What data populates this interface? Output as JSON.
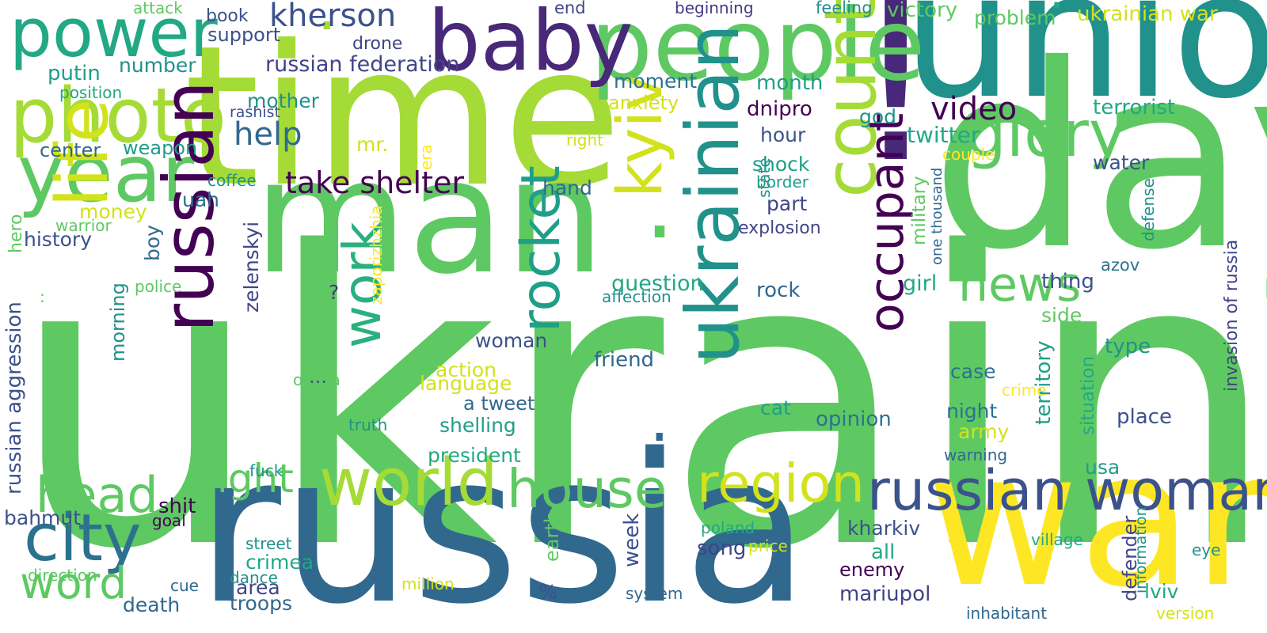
{
  "palette": {
    "lime": "#7ad151",
    "green": "#5ec962",
    "yellowgreen": "#a5db36",
    "yellow": "#fde725",
    "chartreuse": "#d2e21b",
    "teal": "#21918c",
    "sea": "#22a884",
    "aqua": "#2ab07f",
    "blue": "#31688e",
    "slate": "#3b528b",
    "indigo": "#443983",
    "purple": "#482878",
    "plum": "#440154",
    "cyan": "#1f9e89",
    "steel": "#2c728e",
    "navy": "#414487"
  },
  "words": [
    {
      "text": "ukraine",
      "color": "green"
    },
    {
      "text": "russia",
      "color": "blue"
    },
    {
      "text": "war",
      "color": "yellow"
    },
    {
      "text": "time",
      "color": "yellowgreen"
    },
    {
      "text": "man",
      "color": "green"
    },
    {
      "text": "day",
      "color": "green"
    },
    {
      "text": "union",
      "color": "teal"
    },
    {
      "text": "!",
      "color": "purple"
    },
    {
      "text": ".",
      "color": "green"
    },
    {
      "text": ".",
      "color": "blue"
    },
    {
      "text": ".",
      "color": "yellowgreen"
    },
    {
      "text": ".",
      "color": "sea"
    },
    {
      "text": "people",
      "color": "green"
    },
    {
      "text": "baby",
      "color": "purple"
    },
    {
      "text": "power",
      "color": "sea"
    },
    {
      "text": "photo",
      "color": "yellowgreen"
    },
    {
      "text": "year",
      "color": "green"
    },
    {
      "text": "life",
      "color": "chartreuse"
    },
    {
      "text": "russian",
      "color": "plum"
    },
    {
      "text": "ukrainian",
      "color": "teal"
    },
    {
      "text": "country",
      "color": "yellowgreen"
    },
    {
      "text": "glory",
      "color": "green"
    },
    {
      "text": "kyiv",
      "color": "chartreuse"
    },
    {
      "text": "occupant",
      "color": "plum"
    },
    {
      "text": "rocket",
      "color": "cyan"
    },
    {
      "text": "work",
      "color": "aqua"
    },
    {
      "text": "news",
      "color": "green"
    },
    {
      "text": "world",
      "color": "yellowgreen"
    },
    {
      "text": "house",
      "color": "green"
    },
    {
      "text": "region",
      "color": "chartreuse"
    },
    {
      "text": "russian woman",
      "color": "slate"
    },
    {
      "text": "city",
      "color": "steel"
    },
    {
      "text": "head",
      "color": "green"
    },
    {
      "text": "word",
      "color": "green"
    },
    {
      "text": "light",
      "color": "green"
    },
    {
      "text": "kherson",
      "color": "slate"
    },
    {
      "text": "take shelter",
      "color": "plum"
    },
    {
      "text": "help",
      "color": "blue"
    },
    {
      "text": "video",
      "color": "plum"
    },
    {
      "text": "russian federation",
      "color": "navy"
    },
    {
      "text": "support",
      "color": "slate"
    },
    {
      "text": "drone",
      "color": "navy"
    },
    {
      "text": "book",
      "color": "slate"
    },
    {
      "text": "attack",
      "color": "green"
    },
    {
      "text": "end",
      "color": "navy"
    },
    {
      "text": "beginning",
      "color": "indigo"
    },
    {
      "text": "feeling",
      "color": "teal"
    },
    {
      "text": "victory",
      "color": "green"
    },
    {
      "text": "problem",
      "color": "green"
    },
    {
      "text": "ukrainian war",
      "color": "chartreuse"
    },
    {
      "text": "number",
      "color": "teal"
    },
    {
      "text": "putin",
      "color": "cyan"
    },
    {
      "text": "position",
      "color": "sea"
    },
    {
      "text": "mother",
      "color": "teal"
    },
    {
      "text": "rashist",
      "color": "slate"
    },
    {
      "text": "moment",
      "color": "steel"
    },
    {
      "text": "anxiety",
      "color": "chartreuse"
    },
    {
      "text": "month",
      "color": "cyan"
    },
    {
      "text": "dnipro",
      "color": "plum"
    },
    {
      "text": "god",
      "color": "teal"
    },
    {
      "text": "terrorist",
      "color": "sea"
    },
    {
      "text": "hour",
      "color": "slate"
    },
    {
      "text": "center",
      "color": "blue"
    },
    {
      "text": "weapon",
      "color": "cyan"
    },
    {
      "text": "mr.",
      "color": "chartreuse"
    },
    {
      "text": "right",
      "color": "chartreuse"
    },
    {
      "text": "twitter",
      "color": "sea"
    },
    {
      "text": "couple",
      "color": "yellow"
    },
    {
      "text": "shock",
      "color": "cyan"
    },
    {
      "text": "water",
      "color": "slate"
    },
    {
      "text": "coffee",
      "color": "teal"
    },
    {
      "text": "era",
      "color": "yellow"
    },
    {
      "text": "hand",
      "color": "blue"
    },
    {
      "text": "state",
      "color": "teal"
    },
    {
      "text": "border",
      "color": "cyan"
    },
    {
      "text": "military",
      "color": "green"
    },
    {
      "text": "one thousand",
      "color": "blue"
    },
    {
      "text": "defense",
      "color": "teal"
    },
    {
      "text": "uah",
      "color": "steel"
    },
    {
      "text": "money",
      "color": "chartreuse"
    },
    {
      "text": "warrior",
      "color": "green"
    },
    {
      "text": "hero",
      "color": "green"
    },
    {
      "text": "history",
      "color": "slate"
    },
    {
      "text": "zaporizhzhia",
      "color": "yellow"
    },
    {
      "text": "part",
      "color": "navy"
    },
    {
      "text": "explosion",
      "color": "navy"
    },
    {
      "text": "boy",
      "color": "blue"
    },
    {
      "text": "zelenskyi",
      "color": "navy"
    },
    {
      "text": "police",
      "color": "green"
    },
    {
      "text": "?",
      "color": "indigo"
    },
    {
      "text": "question",
      "color": "sea"
    },
    {
      "text": "affection",
      "color": "teal"
    },
    {
      "text": "rock",
      "color": "blue"
    },
    {
      "text": "girl",
      "color": "sea"
    },
    {
      "text": "thing",
      "color": "slate"
    },
    {
      "text": "azov",
      "color": "steel"
    },
    {
      "text": "invasion of russia",
      "color": "navy"
    },
    {
      "text": ":",
      "color": "green"
    },
    {
      "text": "morning",
      "color": "teal"
    },
    {
      "text": "russian aggression",
      "color": "slate"
    },
    {
      "text": "side",
      "color": "green"
    },
    {
      "text": "woman",
      "color": "slate"
    },
    {
      "text": "friend",
      "color": "blue"
    },
    {
      "text": "type",
      "color": "teal"
    },
    {
      "text": "action",
      "color": "chartreuse"
    },
    {
      "text": "language",
      "color": "chartreuse"
    },
    {
      "text": "odesa",
      "color": "green"
    },
    {
      "text": "...",
      "color": "slate"
    },
    {
      "text": "a tweet",
      "color": "blue"
    },
    {
      "text": "case",
      "color": "steel"
    },
    {
      "text": "territory",
      "color": "cyan"
    },
    {
      "text": "situation",
      "color": "sea"
    },
    {
      "text": "crime",
      "color": "yellow"
    },
    {
      "text": "cat",
      "color": "cyan"
    },
    {
      "text": "night",
      "color": "steel"
    },
    {
      "text": "shelling",
      "color": "cyan"
    },
    {
      "text": "place",
      "color": "slate"
    },
    {
      "text": "truth",
      "color": "teal"
    },
    {
      "text": "opinion",
      "color": "steel"
    },
    {
      "text": "army",
      "color": "chartreuse"
    },
    {
      "text": "president",
      "color": "sea"
    },
    {
      "text": "warning",
      "color": "blue"
    },
    {
      "text": "fuck",
      "color": "teal"
    },
    {
      "text": "usa",
      "color": "cyan"
    },
    {
      "text": "shit",
      "color": "plum"
    },
    {
      "text": "bahmut",
      "color": "slate"
    },
    {
      "text": "goal",
      "color": "plum"
    },
    {
      "text": "kharkiv",
      "color": "slate"
    },
    {
      "text": "poland",
      "color": "sea"
    },
    {
      "text": "price",
      "color": "chartreuse"
    },
    {
      "text": "village",
      "color": "sea"
    },
    {
      "text": "street",
      "color": "teal"
    },
    {
      "text": "crimea",
      "color": "sea"
    },
    {
      "text": "week",
      "color": "slate"
    },
    {
      "text": "song",
      "color": "navy"
    },
    {
      "text": "all",
      "color": "sea"
    },
    {
      "text": "defender",
      "color": "navy"
    },
    {
      "text": "information",
      "color": "teal"
    },
    {
      "text": "eye",
      "color": "teal"
    },
    {
      "text": "direction",
      "color": "green"
    },
    {
      "text": "dance",
      "color": "teal"
    },
    {
      "text": "enemy",
      "color": "plum"
    },
    {
      "text": "cue",
      "color": "blue"
    },
    {
      "text": "area",
      "color": "navy"
    },
    {
      "text": "million",
      "color": "chartreuse"
    },
    {
      "text": "earth",
      "color": "green"
    },
    {
      "text": "%",
      "color": "slate"
    },
    {
      "text": "system",
      "color": "blue"
    },
    {
      "text": "mariupol",
      "color": "navy"
    },
    {
      "text": "lviv",
      "color": "sea"
    },
    {
      "text": "death",
      "color": "blue"
    },
    {
      "text": "troops",
      "color": "blue"
    },
    {
      "text": "inhabitant",
      "color": "blue"
    },
    {
      "text": "version",
      "color": "chartreuse"
    }
  ]
}
